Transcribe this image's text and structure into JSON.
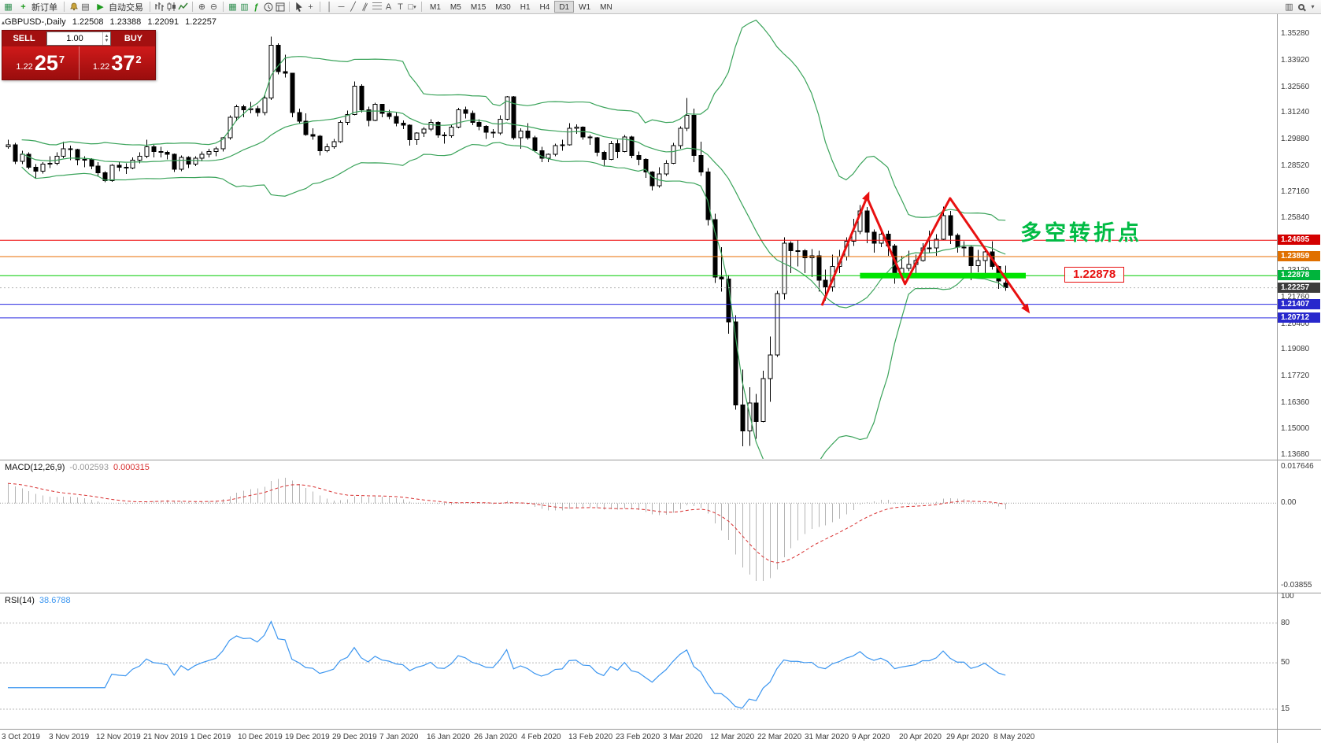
{
  "toolbar": {
    "new_order": "新订单",
    "autotrading": "自动交易",
    "timeframes": [
      "M1",
      "M5",
      "M15",
      "M30",
      "H1",
      "H4",
      "D1",
      "W1",
      "MN"
    ],
    "active_timeframe": "D1",
    "text_tool": "A",
    "label_tool": "T"
  },
  "symbol_header": {
    "symbol": "GBPUSD-,Daily",
    "open": "1.22508",
    "high": "1.23388",
    "low": "1.22091",
    "close": "1.22257"
  },
  "one_click": {
    "sell_label": "SELL",
    "buy_label": "BUY",
    "volume": "1.00",
    "sell_small": "1.22",
    "sell_big": "25",
    "sell_sup": "7",
    "buy_small": "1.22",
    "buy_big": "37",
    "buy_sup": "2"
  },
  "macd": {
    "label": "MACD(12,26,9)",
    "fast": 12,
    "slow": 26,
    "signal": 9,
    "value_main": "-0.002593",
    "value_signal": "0.000315",
    "axis_max": "0.017646",
    "axis_zero": "0.00",
    "axis_min": "-0.03855",
    "histogram_color": "#b4b4b4",
    "signal_color": "#d83030"
  },
  "rsi": {
    "label": "RSI(14)",
    "period": 14,
    "value": "38.6788",
    "line_color": "#3c96f0",
    "levels": [
      100,
      80,
      50,
      15
    ]
  },
  "chart_data": {
    "type": "candlestick",
    "bollinger": {
      "period": 20,
      "deviation": 2,
      "color": "#3aa35a"
    },
    "y_ticks": [
      "1.35280",
      "1.33920",
      "1.32560",
      "1.31240",
      "1.29880",
      "1.28520",
      "1.27160",
      "1.25840",
      "1.23120",
      "1.21760",
      "1.20400",
      "1.19080",
      "1.17720",
      "1.16360",
      "1.15000",
      "1.13680"
    ],
    "x_labels": [
      "3 Oct 2019",
      "3 Nov 2019",
      "12 Nov 2019",
      "21 Nov 2019",
      "1 Dec 2019",
      "10 Dec 2019",
      "19 Dec 2019",
      "29 Dec 2019",
      "7 Jan 2020",
      "16 Jan 2020",
      "26 Jan 2020",
      "4 Feb 2020",
      "13 Feb 2020",
      "23 Feb 2020",
      "3 Mar 2020",
      "12 Mar 2020",
      "22 Mar 2020",
      "31 Mar 2020",
      "9 Apr 2020",
      "20 Apr 2020",
      "29 Apr 2020",
      "8 May 2020"
    ],
    "hlines": [
      {
        "value": 1.24695,
        "label": "1.24695",
        "line_color": "#ee0000",
        "tag_color": "#d40000"
      },
      {
        "value": 1.23859,
        "label": "1.23859",
        "line_color": "#e86c00",
        "tag_color": "#e07000"
      },
      {
        "value": 1.22878,
        "label": "1.22878",
        "line_color": "#00cc00",
        "tag_color": "#00b43c"
      },
      {
        "value": 1.21407,
        "label": "1.21407",
        "line_color": "#2828e0",
        "tag_color": "#2828cc"
      },
      {
        "value": 1.20712,
        "label": "1.20712",
        "line_color": "#2828e0",
        "tag_color": "#2828cc"
      }
    ],
    "current_price": {
      "value": 1.22257,
      "label": "1.22257",
      "tag_color": "#3c3c3c",
      "line_color": "#b4b4b4"
    },
    "support_band": {
      "price": 1.2288,
      "start_bar": 123,
      "end_x": 1303,
      "height": 7,
      "color": "#00e400"
    },
    "annotation": {
      "text": "多空转折点",
      "color": "#00bb44",
      "x": 1296,
      "y": 274,
      "size": 27
    },
    "price_label_box": {
      "text": "1.22878",
      "x": 1352,
      "y": 339
    },
    "arrows": {
      "color": "#e81010",
      "width": 3,
      "points": [
        [
          117.5,
          1.2135
        ],
        [
          124,
          1.269
        ],
        [
          129.5,
          1.2245
        ],
        [
          136,
          1.2685
        ],
        [
          147,
          1.212
        ]
      ],
      "head_at": [
        1,
        4
      ]
    },
    "candles": [
      [
        1.295,
        1.2985,
        1.294,
        1.296
      ],
      [
        1.296,
        1.297,
        1.286,
        1.2875
      ],
      [
        1.2875,
        1.293,
        1.286,
        1.291
      ],
      [
        1.291,
        1.292,
        1.2835,
        1.2845
      ],
      [
        1.2845,
        1.286,
        1.2788,
        1.2825
      ],
      [
        1.2825,
        1.287,
        1.2812,
        1.286
      ],
      [
        1.286,
        1.29,
        1.284,
        1.2865
      ],
      [
        1.2865,
        1.292,
        1.2855,
        1.29
      ],
      [
        1.29,
        1.2975,
        1.289,
        1.294
      ],
      [
        1.294,
        1.2955,
        1.288,
        1.2935
      ],
      [
        1.2935,
        1.294,
        1.2855,
        1.2882
      ],
      [
        1.2882,
        1.29,
        1.2845,
        1.2885
      ],
      [
        1.2885,
        1.289,
        1.2835,
        1.285
      ],
      [
        1.285,
        1.287,
        1.2795,
        1.2815
      ],
      [
        1.2815,
        1.2825,
        1.2768,
        1.2775
      ],
      [
        1.2775,
        1.286,
        1.277,
        1.2855
      ],
      [
        1.2855,
        1.2875,
        1.2825,
        1.2845
      ],
      [
        1.2845,
        1.2865,
        1.281,
        1.284
      ],
      [
        1.284,
        1.2895,
        1.2835,
        1.288
      ],
      [
        1.288,
        1.292,
        1.2865,
        1.29
      ],
      [
        1.29,
        1.2985,
        1.289,
        1.295
      ],
      [
        1.295,
        1.296,
        1.2895,
        1.2925
      ],
      [
        1.2925,
        1.295,
        1.2895,
        1.292
      ],
      [
        1.292,
        1.293,
        1.2885,
        1.291
      ],
      [
        1.291,
        1.2915,
        1.282,
        1.2835
      ],
      [
        1.2835,
        1.2905,
        1.2825,
        1.2895
      ],
      [
        1.2895,
        1.29,
        1.284,
        1.286
      ],
      [
        1.286,
        1.29,
        1.285,
        1.289
      ],
      [
        1.289,
        1.2925,
        1.2875,
        1.291
      ],
      [
        1.291,
        1.294,
        1.2895,
        1.2925
      ],
      [
        1.2925,
        1.295,
        1.29,
        1.294
      ],
      [
        1.294,
        1.3,
        1.2925,
        1.2995
      ],
      [
        1.2995,
        1.311,
        1.2985,
        1.31
      ],
      [
        1.31,
        1.3165,
        1.308,
        1.3155
      ],
      [
        1.3155,
        1.3165,
        1.31,
        1.314
      ],
      [
        1.314,
        1.318,
        1.312,
        1.3145
      ],
      [
        1.3145,
        1.316,
        1.3105,
        1.3125
      ],
      [
        1.3125,
        1.3215,
        1.311,
        1.32
      ],
      [
        1.32,
        1.3515,
        1.319,
        1.347
      ],
      [
        1.347,
        1.348,
        1.332,
        1.3335
      ],
      [
        1.3335,
        1.3422,
        1.3305,
        1.3327
      ],
      [
        1.3327,
        1.333,
        1.31,
        1.3125
      ],
      [
        1.3125,
        1.3145,
        1.307,
        1.308
      ],
      [
        1.308,
        1.312,
        1.3005,
        1.3012
      ],
      [
        1.3012,
        1.3045,
        1.2985,
        1.3003
      ],
      [
        1.3003,
        1.301,
        1.2905,
        1.293
      ],
      [
        1.293,
        1.2965,
        1.292,
        1.295
      ],
      [
        1.295,
        1.299,
        1.294,
        1.2975
      ],
      [
        1.2975,
        1.3085,
        1.297,
        1.3075
      ],
      [
        1.3075,
        1.3135,
        1.306,
        1.3115
      ],
      [
        1.3115,
        1.3285,
        1.311,
        1.326
      ],
      [
        1.326,
        1.327,
        1.3125,
        1.314
      ],
      [
        1.314,
        1.3155,
        1.3055,
        1.3085
      ],
      [
        1.3085,
        1.3175,
        1.308,
        1.3168
      ],
      [
        1.3168,
        1.317,
        1.31,
        1.312
      ],
      [
        1.312,
        1.314,
        1.309,
        1.3105
      ],
      [
        1.3105,
        1.3125,
        1.3055,
        1.307
      ],
      [
        1.307,
        1.3085,
        1.304,
        1.306
      ],
      [
        1.306,
        1.3065,
        1.2955,
        1.2985
      ],
      [
        1.2985,
        1.3025,
        1.296,
        1.302
      ],
      [
        1.302,
        1.305,
        1.3,
        1.304
      ],
      [
        1.304,
        1.309,
        1.303,
        1.3075
      ],
      [
        1.3075,
        1.308,
        1.2995,
        1.301
      ],
      [
        1.301,
        1.3025,
        1.2965,
        1.3005
      ],
      [
        1.3005,
        1.306,
        1.2995,
        1.305
      ],
      [
        1.305,
        1.315,
        1.3045,
        1.314
      ],
      [
        1.314,
        1.3155,
        1.3095,
        1.312
      ],
      [
        1.312,
        1.3135,
        1.306,
        1.3075
      ],
      [
        1.3075,
        1.309,
        1.3035,
        1.3055
      ],
      [
        1.3055,
        1.306,
        1.299,
        1.3025
      ],
      [
        1.3025,
        1.304,
        1.2995,
        1.302
      ],
      [
        1.302,
        1.311,
        1.301,
        1.309
      ],
      [
        1.309,
        1.321,
        1.3085,
        1.3205
      ],
      [
        1.3205,
        1.321,
        1.2985,
        1.2995
      ],
      [
        1.2995,
        1.3045,
        1.294,
        1.303
      ],
      [
        1.303,
        1.307,
        1.2985,
        1.2995
      ],
      [
        1.2995,
        1.3005,
        1.292,
        1.293
      ],
      [
        1.293,
        1.295,
        1.287,
        1.289
      ],
      [
        1.289,
        1.2915,
        1.287,
        1.291
      ],
      [
        1.291,
        1.2965,
        1.29,
        1.2955
      ],
      [
        1.2955,
        1.2985,
        1.293,
        1.296
      ],
      [
        1.296,
        1.307,
        1.2955,
        1.3045
      ],
      [
        1.3045,
        1.3065,
        1.3015,
        1.305
      ],
      [
        1.305,
        1.3055,
        1.2985,
        1.3
      ],
      [
        1.3,
        1.301,
        1.296,
        1.2995
      ],
      [
        1.2995,
        1.3,
        1.29,
        1.292
      ],
      [
        1.292,
        1.293,
        1.285,
        1.2885
      ],
      [
        1.2885,
        1.298,
        1.288,
        1.2965
      ],
      [
        1.2965,
        1.2985,
        1.289,
        1.2925
      ],
      [
        1.2925,
        1.301,
        1.292,
        1.3
      ],
      [
        1.3,
        1.3005,
        1.289,
        1.2905
      ],
      [
        1.2905,
        1.2925,
        1.2855,
        1.2885
      ],
      [
        1.2885,
        1.289,
        1.279,
        1.282
      ],
      [
        1.282,
        1.2825,
        1.2725,
        1.275
      ],
      [
        1.275,
        1.2845,
        1.274,
        1.281
      ],
      [
        1.281,
        1.288,
        1.28,
        1.2865
      ],
      [
        1.2865,
        1.297,
        1.286,
        1.2955
      ],
      [
        1.2955,
        1.3055,
        1.294,
        1.3045
      ],
      [
        1.3045,
        1.32,
        1.303,
        1.311
      ],
      [
        1.311,
        1.3145,
        1.287,
        1.2905
      ],
      [
        1.2905,
        1.2975,
        1.28,
        1.282
      ],
      [
        1.282,
        1.284,
        1.2545,
        1.2575
      ],
      [
        1.2575,
        1.2605,
        1.225,
        1.228
      ],
      [
        1.228,
        1.2435,
        1.2205,
        1.227
      ],
      [
        1.227,
        1.229,
        1.199,
        1.205
      ],
      [
        1.205,
        1.2085,
        1.16,
        1.1625
      ],
      [
        1.1625,
        1.1805,
        1.1412,
        1.149
      ],
      [
        1.149,
        1.1715,
        1.1415,
        1.1635
      ],
      [
        1.1635,
        1.168,
        1.145,
        1.154
      ],
      [
        1.154,
        1.18,
        1.1535,
        1.176
      ],
      [
        1.176,
        1.1975,
        1.164,
        1.188
      ],
      [
        1.188,
        1.221,
        1.187,
        1.2195
      ],
      [
        1.2195,
        1.2485,
        1.2165,
        1.2455
      ],
      [
        1.2455,
        1.2465,
        1.23,
        1.2415
      ],
      [
        1.2415,
        1.247,
        1.2335,
        1.2415
      ],
      [
        1.2415,
        1.2425,
        1.23,
        1.238
      ],
      [
        1.238,
        1.2425,
        1.228,
        1.239
      ],
      [
        1.239,
        1.2415,
        1.2205,
        1.2265
      ],
      [
        1.2265,
        1.232,
        1.216,
        1.223
      ],
      [
        1.223,
        1.2395,
        1.2205,
        1.2335
      ],
      [
        1.2335,
        1.242,
        1.23,
        1.2385
      ],
      [
        1.2385,
        1.2485,
        1.2365,
        1.2465
      ],
      [
        1.2465,
        1.258,
        1.244,
        1.2515
      ],
      [
        1.2515,
        1.265,
        1.25,
        1.262
      ],
      [
        1.262,
        1.264,
        1.2455,
        1.251
      ],
      [
        1.251,
        1.2525,
        1.2405,
        1.2455
      ],
      [
        1.2455,
        1.252,
        1.2435,
        1.25
      ],
      [
        1.25,
        1.252,
        1.239,
        1.244
      ],
      [
        1.244,
        1.245,
        1.2247,
        1.2295
      ],
      [
        1.2295,
        1.239,
        1.227,
        1.2325
      ],
      [
        1.2325,
        1.2415,
        1.231,
        1.2345
      ],
      [
        1.2345,
        1.2395,
        1.2295,
        1.2365
      ],
      [
        1.2365,
        1.2455,
        1.236,
        1.243
      ],
      [
        1.243,
        1.252,
        1.2405,
        1.243
      ],
      [
        1.243,
        1.25,
        1.239,
        1.2475
      ],
      [
        1.2475,
        1.2643,
        1.247,
        1.2595
      ],
      [
        1.2595,
        1.262,
        1.245,
        1.2495
      ],
      [
        1.2495,
        1.2505,
        1.2405,
        1.2435
      ],
      [
        1.2435,
        1.2465,
        1.2385,
        1.2435
      ],
      [
        1.2435,
        1.2445,
        1.2265,
        1.234
      ],
      [
        1.234,
        1.242,
        1.2305,
        1.2365
      ],
      [
        1.2365,
        1.2415,
        1.23,
        1.241
      ],
      [
        1.241,
        1.2465,
        1.232,
        1.2335
      ],
      [
        1.2335,
        1.234,
        1.222,
        1.226
      ],
      [
        1.22508,
        1.23388,
        1.22091,
        1.22257
      ]
    ]
  }
}
